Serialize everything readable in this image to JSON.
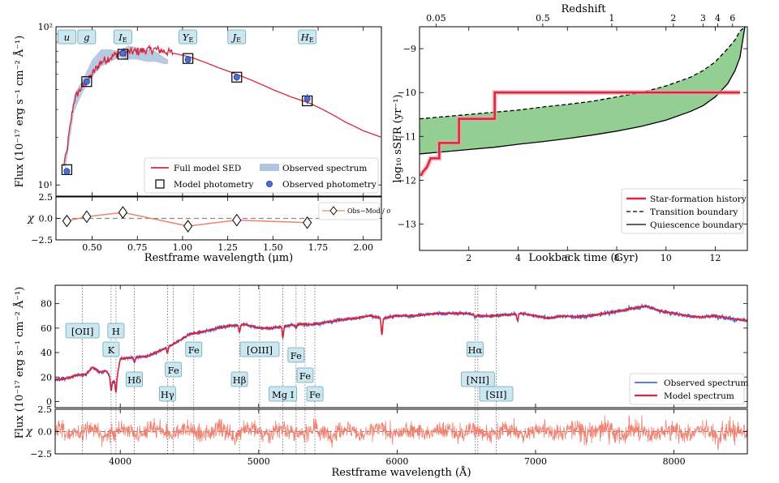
{
  "chart_data": [
    {
      "type": "line",
      "id": "sed",
      "xlabel": "Restframe wavelength (μm)",
      "ylabel": "Flux (10⁻¹⁷ erg s⁻¹ cm⁻² Å⁻¹)",
      "xlim": [
        0.3,
        2.1
      ],
      "ylim": [
        8.5,
        100
      ],
      "yscale": "log",
      "xticks": [
        0.5,
        0.75,
        1.0,
        1.25,
        1.5,
        1.75,
        2.0
      ],
      "xtick_labels": [
        "0.50",
        "0.75",
        "1.00",
        "1.25",
        "1.50",
        "1.75",
        "2.00"
      ],
      "yticks": [
        10,
        100
      ],
      "ytick_labels": [
        "10¹",
        "10²"
      ],
      "band_labels": [
        {
          "name": "u",
          "x": 0.36
        },
        {
          "name": "g",
          "x": 0.47
        },
        {
          "name": "I_E",
          "x": 0.67
        },
        {
          "name": "Y_E",
          "x": 1.03
        },
        {
          "name": "J_E",
          "x": 1.3
        },
        {
          "name": "H_E",
          "x": 1.69
        }
      ],
      "series": [
        {
          "name": "Full model SED",
          "color": "#d7263d",
          "x": [
            0.34,
            0.36,
            0.38,
            0.4,
            0.42,
            0.44,
            0.46,
            0.48,
            0.5,
            0.55,
            0.6,
            0.65,
            0.7,
            0.75,
            0.8,
            0.85,
            0.9,
            0.95,
            1.0,
            1.05,
            1.1,
            1.15,
            1.2,
            1.3,
            1.4,
            1.5,
            1.6,
            1.7,
            1.8,
            1.9,
            2.0,
            2.1
          ],
          "y": [
            13,
            16,
            24,
            34,
            38,
            41,
            44,
            46,
            50,
            60,
            64,
            68,
            69,
            70,
            71,
            72,
            70,
            68,
            66,
            64,
            61,
            58,
            55,
            50,
            45,
            40,
            36,
            33,
            29,
            25,
            22,
            20
          ]
        },
        {
          "name": "Observed spectrum",
          "color": "#b0c4de",
          "x": [
            0.35,
            0.4,
            0.45,
            0.5,
            0.55,
            0.6,
            0.65,
            0.7,
            0.75,
            0.8,
            0.85,
            0.9,
            0.92
          ],
          "y_low": [
            12,
            29,
            39,
            48,
            56,
            60,
            64,
            62,
            62,
            60,
            60,
            58,
            58
          ],
          "y_high": [
            15,
            37,
            47,
            62,
            72,
            72,
            70,
            76,
            74,
            72,
            70,
            64,
            62
          ]
        }
      ],
      "model_photometry": {
        "name": "Model photometry",
        "x": [
          0.36,
          0.47,
          0.67,
          1.03,
          1.3,
          1.69
        ],
        "y": [
          12.5,
          45,
          67,
          63,
          48,
          34
        ]
      },
      "observed_photometry": {
        "name": "Observed photometry",
        "x": [
          0.36,
          0.47,
          0.67,
          1.03,
          1.3,
          1.69
        ],
        "y": [
          12.2,
          45,
          68,
          62,
          48,
          35
        ],
        "yerr": [
          0.6,
          2,
          3,
          3.5,
          2.5,
          2.5
        ]
      },
      "legend": [
        "Full model SED",
        "Observed spectrum",
        "Model photometry",
        "Observed photometry"
      ],
      "legend_position": "lower-right"
    },
    {
      "type": "scatter",
      "id": "sed_residual",
      "ylabel": "χ",
      "ylim": [
        -2.5,
        2.5
      ],
      "yticks": [
        -2.5,
        0.0,
        2.5
      ],
      "ytick_labels": [
        "−2.5",
        "0.0",
        "2.5"
      ],
      "x": [
        0.36,
        0.47,
        0.67,
        1.03,
        1.3,
        1.69
      ],
      "y": [
        -0.3,
        0.2,
        0.7,
        -0.9,
        -0.2,
        -0.5
      ],
      "legend": "Obs−Mod / σ",
      "legend_position": "top-right"
    },
    {
      "type": "line",
      "id": "sfh",
      "xlabel": "Lookback time (Gyr)",
      "ylabel": "log₁₀ sSFR (yr⁻¹)",
      "top_xlabel": "Redshift",
      "xlim": [
        0,
        13.3
      ],
      "ylim": [
        -13.6,
        -8.5
      ],
      "xticks": [
        2,
        4,
        6,
        8,
        10,
        12
      ],
      "yticks": [
        -13,
        -12,
        -11,
        -10,
        -9
      ],
      "ytick_labels": [
        "−13",
        "−12",
        "−11",
        "−10",
        "−9"
      ],
      "top_ticks": [
        {
          "label": "0.05",
          "x": 0.67
        },
        {
          "label": "0.5",
          "x": 5.0
        },
        {
          "label": "1",
          "x": 7.8
        },
        {
          "label": "2",
          "x": 10.3
        },
        {
          "label": "3",
          "x": 11.5
        },
        {
          "label": "4",
          "x": 12.1
        },
        {
          "label": "6",
          "x": 12.7
        }
      ],
      "series": [
        {
          "name": "Star-formation history",
          "color": "#d7263d",
          "x": [
            0.05,
            0.15,
            0.3,
            0.45,
            0.6,
            0.8,
            0.8,
            1.6,
            1.6,
            3.05,
            3.05,
            13.0
          ],
          "y": [
            -11.9,
            -11.8,
            -11.7,
            -11.5,
            -11.5,
            -11.5,
            -11.15,
            -11.15,
            -10.6,
            -10.6,
            -10.0,
            -10.0
          ]
        },
        {
          "name": "Transition boundary",
          "style": "dashed",
          "x": [
            0,
            1,
            2,
            3,
            4,
            5,
            6,
            7,
            8,
            9,
            10,
            11,
            11.5,
            12,
            12.5,
            12.8,
            13.0,
            13.2
          ],
          "y": [
            -10.6,
            -10.55,
            -10.5,
            -10.45,
            -10.4,
            -10.33,
            -10.27,
            -10.2,
            -10.1,
            -10.0,
            -9.85,
            -9.65,
            -9.5,
            -9.3,
            -9.0,
            -8.8,
            -8.6,
            -8.5
          ]
        },
        {
          "name": "Quiescence boundary",
          "style": "solid",
          "x": [
            0,
            1,
            2,
            3,
            4,
            5,
            6,
            7,
            8,
            9,
            10,
            11,
            11.5,
            12,
            12.5,
            12.8,
            13.0,
            13.2
          ],
          "y": [
            -11.4,
            -11.35,
            -11.3,
            -11.25,
            -11.18,
            -11.12,
            -11.05,
            -10.97,
            -10.88,
            -10.77,
            -10.63,
            -10.43,
            -10.3,
            -10.1,
            -9.8,
            -9.5,
            -9.2,
            -8.5
          ]
        }
      ],
      "legend": [
        "Star-formation history",
        "Transition boundary",
        "Quiescence boundary"
      ],
      "legend_position": "lower-right"
    },
    {
      "type": "line",
      "id": "spectrum",
      "xlabel": "Restframe wavelength (Å)",
      "ylabel": "Flux (10⁻¹⁷ erg s⁻¹ cm⁻² Å⁻¹)",
      "xlim": [
        3530,
        8530
      ],
      "ylim": [
        -5,
        95
      ],
      "xticks": [
        4000,
        5000,
        6000,
        7000,
        8000
      ],
      "yticks": [
        0,
        20,
        40,
        60,
        80
      ],
      "line_markers": [
        3727,
        3934,
        3969,
        4102,
        4341,
        4384,
        4531,
        4861,
        5007,
        5175,
        5270,
        5335,
        5406,
        6563,
        6583,
        6716
      ],
      "line_labels": [
        {
          "label": "[OII]",
          "x": 3727,
          "level": 0
        },
        {
          "label": "H",
          "x": 3969,
          "level": 0
        },
        {
          "label": "K",
          "x": 3934,
          "level": 1
        },
        {
          "label": "Hδ",
          "x": 4102,
          "level": 3
        },
        {
          "label": "Fe",
          "x": 4384,
          "level": 2
        },
        {
          "label": "Fe",
          "x": 4531,
          "level": 1
        },
        {
          "label": "Hγ",
          "x": 4341,
          "level": 4
        },
        {
          "label": "Hβ",
          "x": 4861,
          "level": 3
        },
        {
          "label": "[OIII]",
          "x": 5007,
          "level": 1
        },
        {
          "label": "Mg I",
          "x": 5175,
          "level": 4
        },
        {
          "label": "Fe",
          "x": 5270,
          "level": 1.5
        },
        {
          "label": "Fe",
          "x": 5335,
          "level": 2.8
        },
        {
          "label": "Fe",
          "x": 5406,
          "level": 4
        },
        {
          "label": "Hα",
          "x": 6563,
          "level": 1
        },
        {
          "label": "[NII]",
          "x": 6583,
          "level": 3
        },
        {
          "label": "[SII]",
          "x": 6716,
          "level": 4
        }
      ],
      "anchors_x": [
        3560,
        3650,
        3700,
        3750,
        3800,
        3850,
        3900,
        3950,
        3980,
        4000,
        4100,
        4200,
        4300,
        4400,
        4500,
        4600,
        4700,
        4800,
        4900,
        5000,
        5100,
        5200,
        5300,
        5400,
        5500,
        5600,
        5700,
        5800,
        5900,
        6000,
        6100,
        6200,
        6300,
        6400,
        6500,
        6600,
        6700,
        6800,
        6900,
        7000,
        7100,
        7200,
        7300,
        7400,
        7500,
        7600,
        7700,
        7800,
        7900,
        8000,
        8100,
        8200,
        8300,
        8400,
        8530
      ],
      "anchors_y": [
        18,
        20,
        22,
        22,
        28,
        24,
        25,
        16,
        22,
        35,
        36,
        37,
        42,
        48,
        55,
        57,
        60,
        62,
        63,
        60,
        60,
        62,
        63,
        63,
        65,
        67,
        68,
        70,
        68,
        70,
        70,
        71,
        72,
        72,
        72,
        70,
        70,
        71,
        72,
        70,
        68,
        70,
        69,
        70,
        72,
        74,
        76,
        78,
        74,
        72,
        70,
        69,
        70,
        68,
        66
      ],
      "series": [
        {
          "name": "Observed spectrum",
          "color": "#4169e1"
        },
        {
          "name": "Model spectrum",
          "color": "#d7263d"
        }
      ],
      "legend": [
        "Observed spectrum",
        "Model spectrum"
      ],
      "legend_position": "lower-right"
    },
    {
      "type": "line",
      "id": "spectrum_residual",
      "ylabel": "χ",
      "ylim": [
        -2.5,
        2.5
      ],
      "yticks": [
        -2.5,
        0.0,
        2.5
      ],
      "ytick_labels": [
        "−2.5",
        "0.0",
        "2.5"
      ]
    }
  ]
}
